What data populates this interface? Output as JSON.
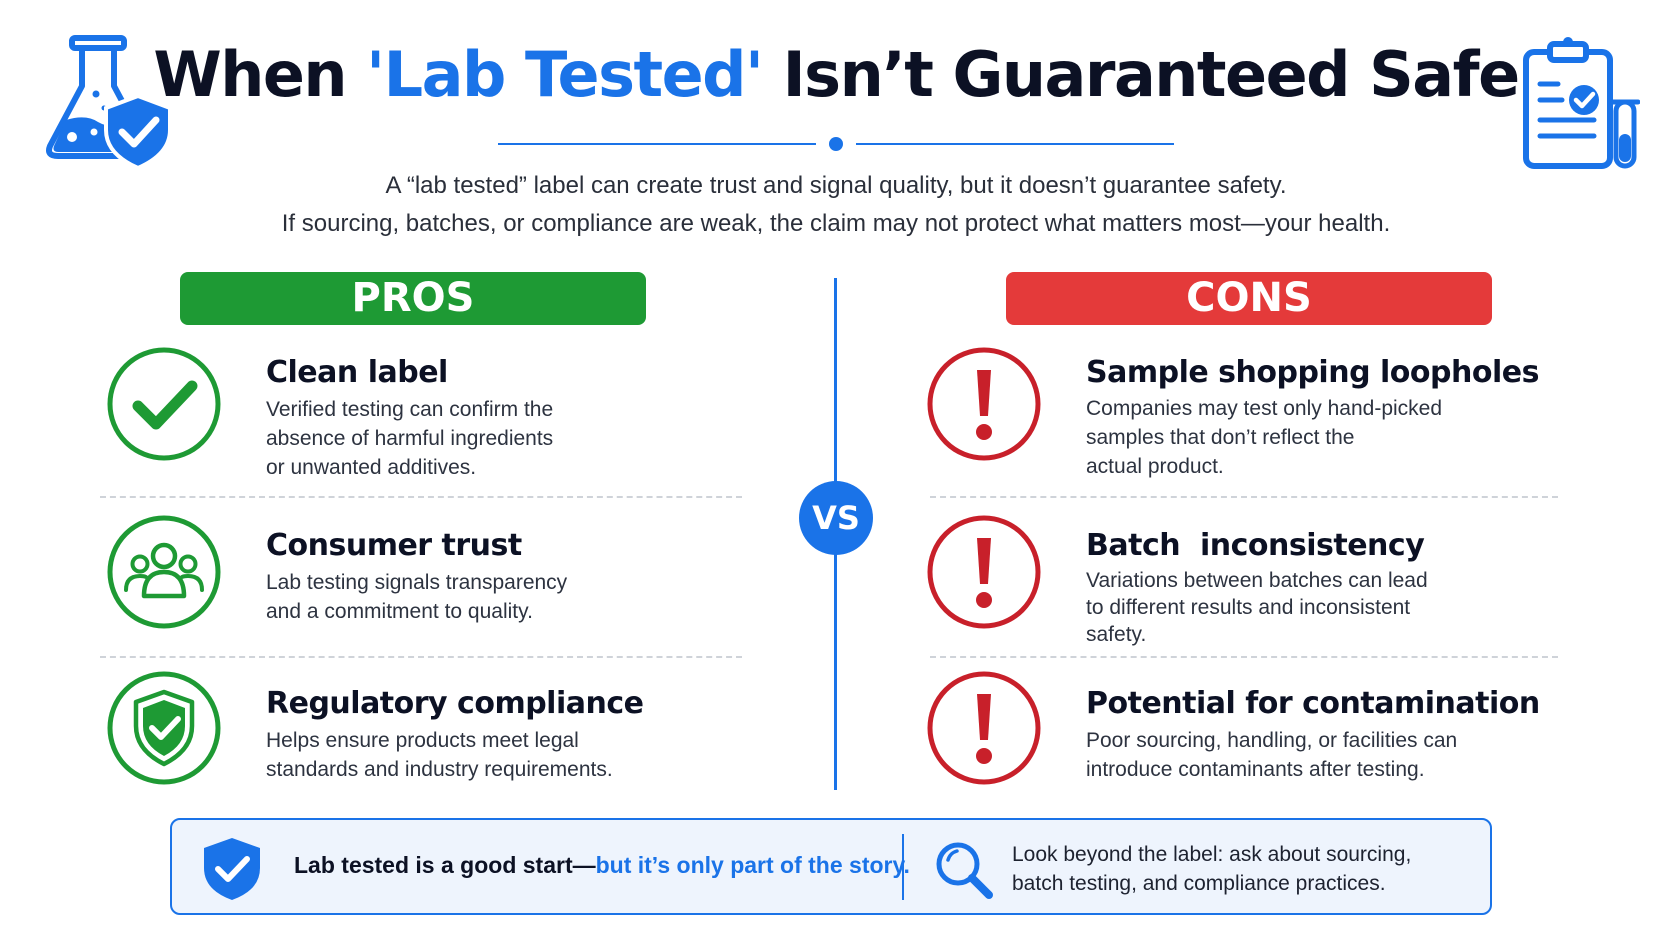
{
  "header": {
    "title_pre": "When ",
    "title_highlight": "'Lab Tested'",
    "title_post": " Isn’t Guaranteed Safe",
    "subtitle_line1": "A “lab tested” label can create trust and signal quality, but it doesn’t guarantee safety.",
    "subtitle_line2": "If sourcing, batches, or compliance are weak, the claim may not protect what matters most—your health."
  },
  "pros": {
    "heading": "PROS",
    "items": [
      {
        "title": "Clean label",
        "desc": "Verified testing can confirm the\nabsence of harmful ingredients\nor unwanted additives.",
        "icon": "checkmark-icon"
      },
      {
        "title": "Consumer trust",
        "desc": "Lab testing signals transparency\nand a commitment to quality.",
        "icon": "people-icon"
      },
      {
        "title": "Regulatory compliance",
        "desc": "Helps ensure products meet legal\nstandards and industry requirements.",
        "icon": "shield-check-icon"
      }
    ]
  },
  "vs_label": "VS",
  "cons": {
    "heading": "CONS",
    "items": [
      {
        "title": "Sample shopping loopholes",
        "desc": "Companies may test only hand-picked\nsamples that don’t reflect the\nactual product.",
        "icon": "exclamation-icon"
      },
      {
        "title": "Batch  inconsistency",
        "desc": "Variations between batches can lead\nto different results and inconsistent\nsafety.",
        "icon": "exclamation-icon"
      },
      {
        "title": "Potential for contamination",
        "desc": "Poor sourcing, handling, or facilities can\nintroduce contaminants after testing.",
        "icon": "exclamation-icon"
      }
    ]
  },
  "footer": {
    "left_bold": "Lab tested is a good start—",
    "left_blue": "but it’s only part of the story.",
    "right_text": "Look beyond the label: ask about sourcing,\nbatch testing, and compliance practices.",
    "left_icon": "shield-check-icon",
    "right_icon": "magnifier-icon"
  },
  "colors": {
    "accent": "#1a73e8",
    "pros": "#1e9a34",
    "cons": "#e43a3a",
    "cons_icon": "#c8202a"
  }
}
